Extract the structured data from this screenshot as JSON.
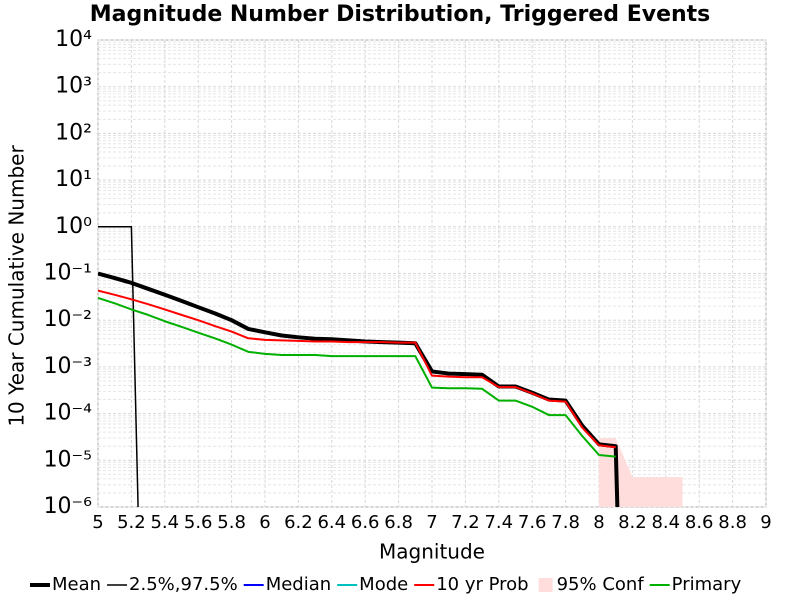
{
  "chart_data": {
    "type": "line",
    "title": "Magnitude Number Distribution, Triggered Events",
    "x_label": "Magnitude",
    "y_label": "10 Year Cumulative Number",
    "log_y": true,
    "grid": true,
    "legend": "bottom",
    "xlim": [
      5,
      9
    ],
    "xticks": [
      5,
      5.2,
      5.4,
      5.6,
      5.8,
      6,
      6.2,
      6.4,
      6.6,
      6.8,
      7,
      7.2,
      7.4,
      7.6,
      7.8,
      8,
      8.2,
      8.4,
      8.6,
      8.8,
      9
    ],
    "ylim": [
      1e-06,
      10000
    ],
    "yticks": [
      {
        "value": 1e-06,
        "label": "10⁻⁶"
      },
      {
        "value": 1e-05,
        "label": "10⁻⁵"
      },
      {
        "value": 0.0001,
        "label": "10⁻⁴"
      },
      {
        "value": 0.001,
        "label": "10⁻³"
      },
      {
        "value": 0.01,
        "label": "10⁻²"
      },
      {
        "value": 0.1,
        "label": "10⁻¹"
      },
      {
        "value": 1,
        "label": "10⁰"
      },
      {
        "value": 10,
        "label": "10¹"
      },
      {
        "value": 100,
        "label": "10²"
      },
      {
        "value": 1000,
        "label": "10³"
      },
      {
        "value": 10000,
        "label": "10⁴"
      }
    ],
    "series": [
      {
        "name": "Mean",
        "color": "#000000",
        "style": "line",
        "line_width": 4,
        "x": [
          5,
          5.1,
          5.2,
          5.3,
          5.4,
          5.5,
          5.6,
          5.7,
          5.8,
          5.9,
          6.0,
          6.1,
          6.2,
          6.3,
          6.4,
          6.5,
          6.6,
          6.7,
          6.8,
          6.9,
          7.0,
          7.1,
          7.2,
          7.3,
          7.4,
          7.5,
          7.6,
          7.7,
          7.8,
          7.9,
          8.0,
          8.1,
          8.11
        ],
        "values": [
          0.1,
          0.08,
          0.063,
          0.047,
          0.035,
          0.026,
          0.019,
          0.014,
          0.01,
          0.0065,
          0.0055,
          0.0047,
          0.0043,
          0.004,
          0.0039,
          0.0037,
          0.0035,
          0.0034,
          0.0033,
          0.0032,
          0.0008,
          0.00072,
          0.0007,
          0.00068,
          0.00038,
          0.00038,
          0.00028,
          0.0002,
          0.00019,
          5.5e-05,
          2.2e-05,
          2e-05,
          1e-06
        ]
      },
      {
        "name": "2.5%,97.5%",
        "color": "#000000",
        "style": "line",
        "line_width": 1.5,
        "x": [
          5,
          5.2,
          5.24
        ],
        "values": [
          1,
          1,
          1e-06
        ]
      },
      {
        "name": "Median",
        "color": "#0000ff",
        "style": "line",
        "line_width": 2,
        "x": [],
        "values": []
      },
      {
        "name": "Mode",
        "color": "#00c0c0",
        "style": "line",
        "line_width": 2,
        "x": [],
        "values": []
      },
      {
        "name": "10 yr Prob",
        "color": "#ff0000",
        "style": "line",
        "line_width": 2,
        "x": [
          5,
          5.1,
          5.2,
          5.3,
          5.4,
          5.5,
          5.6,
          5.7,
          5.8,
          5.9,
          6.0,
          6.1,
          6.2,
          6.3,
          6.4,
          6.5,
          6.6,
          6.7,
          6.8,
          6.9,
          7.0,
          7.1,
          7.2,
          7.3,
          7.4,
          7.5,
          7.6,
          7.7,
          7.8,
          7.9,
          8.0,
          8.1
        ],
        "values": [
          0.043,
          0.035,
          0.028,
          0.022,
          0.017,
          0.013,
          0.01,
          0.0075,
          0.0057,
          0.0041,
          0.0038,
          0.0037,
          0.0036,
          0.0035,
          0.0035,
          0.0034,
          0.0034,
          0.0034,
          0.0033,
          0.0033,
          0.00065,
          0.00062,
          0.0006,
          0.0006,
          0.00037,
          0.00037,
          0.00027,
          0.00019,
          0.00018,
          5e-05,
          2.1e-05,
          1.9e-05
        ]
      },
      {
        "name": "95% Conf",
        "color": "#ffdddd",
        "style": "area",
        "x": [
          8.0,
          8.1,
          8.2,
          8.5
        ],
        "values": [
          3e-05,
          3e-05,
          4.4e-06,
          4.4e-06
        ]
      },
      {
        "name": "Primary",
        "color": "#00b000",
        "style": "line",
        "line_width": 2,
        "x": [
          5,
          5.1,
          5.2,
          5.3,
          5.4,
          5.5,
          5.6,
          5.7,
          5.8,
          5.9,
          6.0,
          6.1,
          6.2,
          6.3,
          6.4,
          6.5,
          6.6,
          6.7,
          6.8,
          6.9,
          7.0,
          7.1,
          7.2,
          7.3,
          7.4,
          7.5,
          7.6,
          7.7,
          7.8,
          7.9,
          8.0,
          8.1
        ],
        "values": [
          0.03,
          0.023,
          0.017,
          0.013,
          0.0095,
          0.0072,
          0.0054,
          0.0041,
          0.003,
          0.0021,
          0.0019,
          0.0018,
          0.0018,
          0.0018,
          0.0017,
          0.0017,
          0.0017,
          0.0017,
          0.0017,
          0.0017,
          0.00036,
          0.00035,
          0.00035,
          0.00034,
          0.00019,
          0.00019,
          0.00014,
          9.3e-05,
          9.3e-05,
          3.3e-05,
          1.3e-05,
          1.2e-05
        ]
      }
    ]
  }
}
